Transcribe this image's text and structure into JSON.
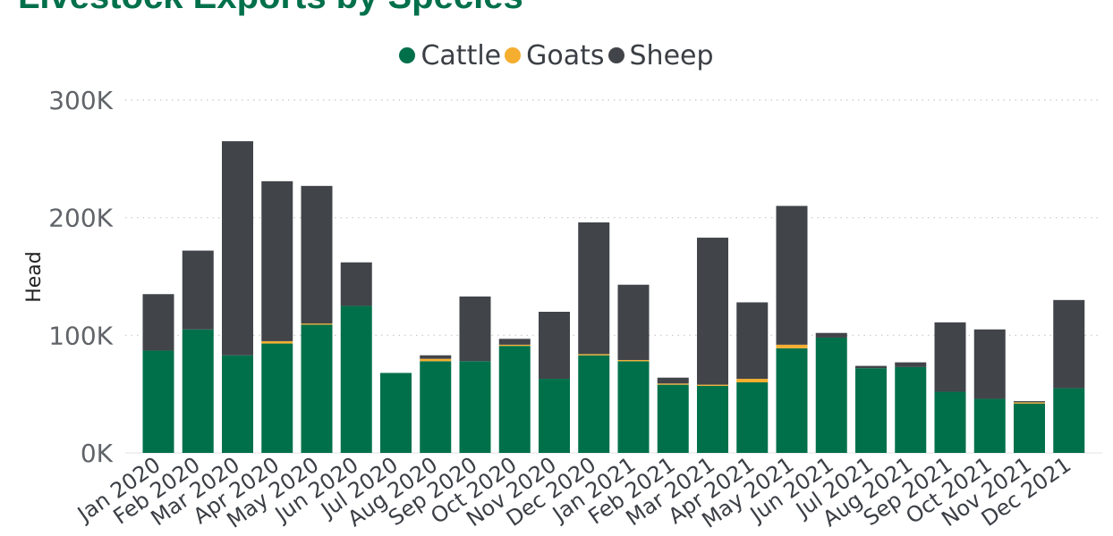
{
  "chart_data": {
    "type": "bar",
    "stacked": true,
    "title": "Livestock Exports by Species",
    "xlabel": "",
    "ylabel": "Head",
    "ylim": [
      0,
      300000
    ],
    "y_ticks": [
      0,
      100000,
      200000,
      300000
    ],
    "y_tick_labels": [
      "0K",
      "100K",
      "200K",
      "300K"
    ],
    "grid": true,
    "legend_position": "top",
    "categories": [
      "Jan 2020",
      "Feb 2020",
      "Mar 2020",
      "Apr 2020",
      "May 2020",
      "Jun 2020",
      "Jul 2020",
      "Aug 2020",
      "Sep 2020",
      "Oct 2020",
      "Nov 2020",
      "Dec 2020",
      "Jan 2021",
      "Feb 2021",
      "Mar 2021",
      "Apr 2021",
      "May 2021",
      "Jun 2021",
      "Jul 2021",
      "Aug 2021",
      "Sep 2021",
      "Oct 2021",
      "Nov 2021",
      "Dec 2021"
    ],
    "series": [
      {
        "name": "Cattle",
        "color": "#00704a",
        "values": [
          87000,
          105000,
          83000,
          93000,
          109000,
          125000,
          68000,
          78000,
          78000,
          91000,
          63000,
          83000,
          78000,
          58000,
          57000,
          60000,
          89000,
          98000,
          72000,
          73000,
          52000,
          46000,
          42000,
          55000
        ]
      },
      {
        "name": "Goats",
        "color": "#f5ae30",
        "values": [
          0,
          0,
          0,
          2000,
          1000,
          0,
          0,
          2000,
          0,
          1000,
          0,
          1000,
          1000,
          1000,
          1000,
          3000,
          3000,
          0,
          0,
          0,
          0,
          0,
          1000,
          0
        ]
      },
      {
        "name": "Sheep",
        "color": "#414449",
        "values": [
          48000,
          67000,
          182000,
          136000,
          117000,
          37000,
          0,
          3000,
          55000,
          5000,
          57000,
          112000,
          64000,
          5000,
          125000,
          65000,
          118000,
          4000,
          2000,
          4000,
          59000,
          59000,
          1000,
          75000
        ]
      }
    ]
  }
}
